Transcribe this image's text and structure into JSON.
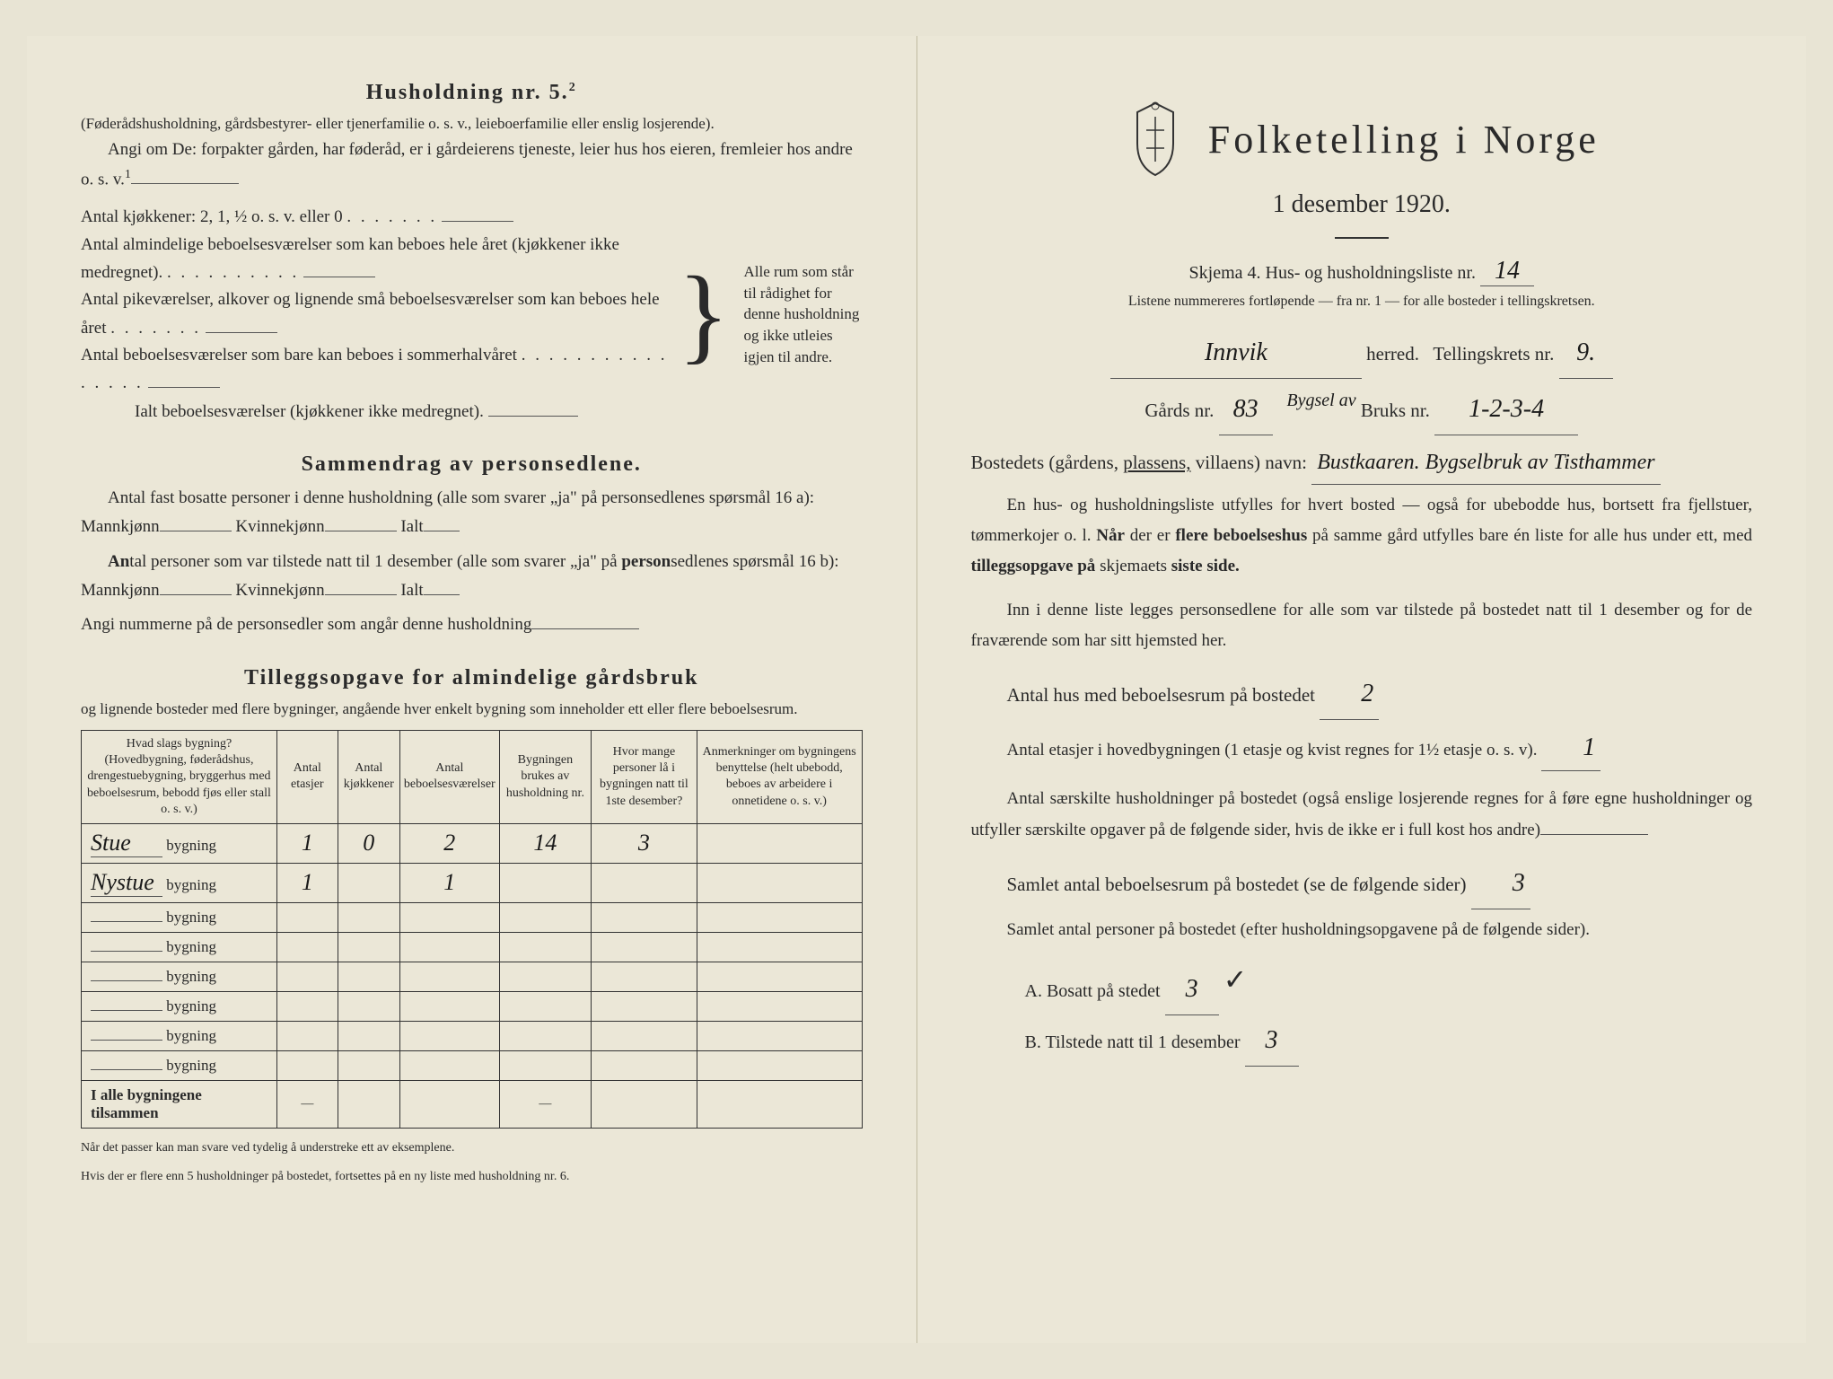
{
  "left": {
    "household_title": "Husholdning nr. 5.",
    "household_sup": "2",
    "household_sub": "(Føderådshusholdning, gårdsbestyrer- eller tjenerfamilie o. s. v., leieboerfamilie eller enslig losjerende).",
    "angi_text": "Angi om De: forpakter gården, har føderåd, er i gårdeierens tjeneste, leier hus hos eieren, fremleier hos andre o. s. v.",
    "angi_sup": "1",
    "kitchen_line": "Antal kjøkkener: 2, 1, ½ o. s. v. eller 0",
    "brace_lines": [
      "Antal almindelige beboelsesværelser som kan beboes hele året (kjøkkener ikke medregnet).",
      "Antal pikeværelser, alkover og lignende små beboelsesværelser som kan beboes hele året",
      "Antal beboelsesværelser som bare kan beboes i sommerhalvåret",
      "Ialt beboelsesværelser (kjøkkener ikke medregnet)."
    ],
    "brace_right": "Alle rum som står til rådighet for denne husholdning og ikke utleies igjen til andre.",
    "summary_title": "Sammendrag av personsedlene.",
    "summary_l1": "Antal fast bosatte personer i denne husholdning (alle som svarer „ja\" på personsedlenes spørsmål 16 a): Mannkjønn",
    "summary_l1b": "Kvinnekjønn",
    "summary_l1c": "Ialt",
    "summary_l2": "Antal personer som var tilstede natt til 1 desember (alle som svarer „ja\" på personsedlenes spørsmål 16 b): Mannkjønn",
    "summary_l3": "Angi nummerne på de personsedler som angår denne husholdning",
    "tillegg_title": "Tilleggsopgave for almindelige gårdsbruk",
    "tillegg_sub": "og lignende bosteder med flere bygninger, angående hver enkelt bygning som inneholder ett eller flere beboelsesrum.",
    "table_headers": [
      "Hvad slags bygning?\n(Hovedbygning, føderådshus, drengestuebygning, bryggerhus med beboelsesrum, bebodd fjøs eller stall o. s. v.)",
      "Antal etasjer",
      "Antal kjøkkener",
      "Antal beboelsesværelser",
      "Bygningen brukes av husholdning nr.",
      "Hvor mange personer lå i bygningen natt til 1ste desember?",
      "Anmerkninger om bygningens benyttelse (helt ubebodd, beboes av arbeidere i onnetidene o. s. v.)"
    ],
    "table_rows": [
      {
        "name": "Stue",
        "etasjer": "1",
        "kjokken": "0",
        "vaerelser": "2",
        "hushold": "14",
        "personer": "3",
        "anm": ""
      },
      {
        "name": "Nystue",
        "etasjer": "1",
        "kjokken": "",
        "vaerelser": "1",
        "hushold": "",
        "personer": "",
        "anm": ""
      },
      {
        "name": "",
        "etasjer": "",
        "kjokken": "",
        "vaerelser": "",
        "hushold": "",
        "personer": "",
        "anm": ""
      },
      {
        "name": "",
        "etasjer": "",
        "kjokken": "",
        "vaerelser": "",
        "hushold": "",
        "personer": "",
        "anm": ""
      },
      {
        "name": "",
        "etasjer": "",
        "kjokken": "",
        "vaerelser": "",
        "hushold": "",
        "personer": "",
        "anm": ""
      },
      {
        "name": "",
        "etasjer": "",
        "kjokken": "",
        "vaerelser": "",
        "hushold": "",
        "personer": "",
        "anm": ""
      },
      {
        "name": "",
        "etasjer": "",
        "kjokken": "",
        "vaerelser": "",
        "hushold": "",
        "personer": "",
        "anm": ""
      },
      {
        "name": "",
        "etasjer": "",
        "kjokken": "",
        "vaerelser": "",
        "hushold": "",
        "personer": "",
        "anm": ""
      }
    ],
    "table_total_label": "I alle bygningene tilsammen",
    "bygning_word": "bygning",
    "footnote1": "Når det passer kan man svare ved tydelig å understreke ett av eksemplene.",
    "footnote2": "Hvis der er flere enn 5 husholdninger på bostedet, fortsettes på en ny liste med husholdning nr. 6."
  },
  "right": {
    "main_title": "Folketelling i Norge",
    "date_line": "1 desember 1920.",
    "skjema_label": "Skjema 4. Hus- og husholdningsliste nr.",
    "skjema_nr": "14",
    "listene": "Listene nummereres fortløpende — fra nr. 1 — for alle bosteder i tellingskretsen.",
    "herred_hw": "Innvik",
    "herred_label": "herred.",
    "tellingskrets_label": "Tellingskrets nr.",
    "tellingskrets_nr": "9.",
    "gards_label": "Gårds nr.",
    "gards_nr": "83",
    "bygsel_label": "Bygsel av",
    "bruks_label": "Bruks nr.",
    "bruks_nr": "1-2-3-4",
    "bostedet_label": "Bostedets (gårdens, plassens, villaens) navn:",
    "bostedet_hw": "Bustkaaren. Bygselbruk av Tisthammer",
    "body1": "En hus- og husholdningsliste utfylles for hvert bosted — også for ubebodde hus, bortsett fra fjellstuer, tømmerkojer o. l. Når der er flere beboelseshus på samme gård utfylles bare én liste for alle hus under ett, med tilleggsopgave på skjemaets siste side.",
    "body2": "Inn i denne liste legges personsedlene for alle som var tilstede på bostedet natt til 1 desember og for de fraværende som har sitt hjemsted her.",
    "antal_hus_label": "Antal hus med beboelsesrum på bostedet",
    "antal_hus_val": "2",
    "antal_etasjer": "Antal etasjer i hovedbygningen (1 etasje og kvist regnes for 1½ etasje o. s. v).",
    "antal_etasjer_val": "1",
    "antal_saer": "Antal særskilte husholdninger på bostedet (også enslige losjerende regnes for å føre egne husholdninger og utfyller særskilte opgaver på de følgende sider, hvis de ikke er i full kost hos andre)",
    "samlet_beb": "Samlet antal beboelsesrum på bostedet (se de følgende sider)",
    "samlet_beb_val": "3",
    "samlet_pers": "Samlet antal personer på bostedet (efter husholdningsopgavene på de følgende sider).",
    "item_a": "A. Bosatt på stedet",
    "item_a_val": "3",
    "item_a_check": "✓",
    "item_b": "B. Tilstede natt til 1 desember",
    "item_b_val": "3",
    "plassens": "plassens,"
  },
  "colors": {
    "paper": "#ebe7d7",
    "ink": "#2a2a2a",
    "handwriting": "#1a1a1a",
    "border": "#333333"
  }
}
